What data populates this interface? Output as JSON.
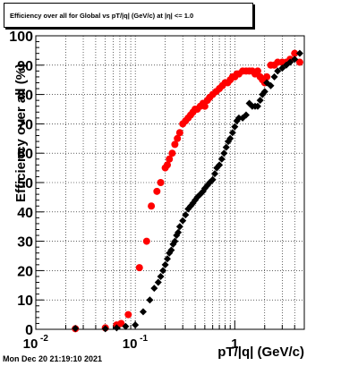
{
  "title": "Efficiency over all for Global vs pT/|q| (GeV/c) at |η| <= 1.0",
  "footer_timestamp": "Mon Dec 20 21:19:10 2021",
  "chart_data": {
    "type": "scatter",
    "xlabel": "pT/|q| (GeV/c)",
    "ylabel": "Efficiency over all (%)",
    "xscale": "log",
    "xlim": [
      0.01,
      5
    ],
    "ylim": [
      0,
      100
    ],
    "grid": true,
    "y_ticks": [
      "0",
      "10",
      "20",
      "30",
      "40",
      "50",
      "60",
      "70",
      "80",
      "90",
      "100"
    ],
    "x_ticks": [
      {
        "value": 0.01,
        "label": "10",
        "sup": "-2"
      },
      {
        "value": 0.1,
        "label": "10",
        "sup": "-1"
      },
      {
        "value": 1,
        "label": "1",
        "sup": ""
      }
    ],
    "colors": {
      "series_red": "#ff0000",
      "series_black": "#000000"
    },
    "series": [
      {
        "color": "#ff0000",
        "x": [
          0.025,
          0.05,
          0.065,
          0.072,
          0.085,
          0.11,
          0.13,
          0.145,
          0.165,
          0.18,
          0.2,
          0.21,
          0.22,
          0.235,
          0.25,
          0.265,
          0.28,
          0.3,
          0.32,
          0.34,
          0.36,
          0.38,
          0.4,
          0.42,
          0.45,
          0.48,
          0.5,
          0.53,
          0.56,
          0.6,
          0.65,
          0.7,
          0.75,
          0.8,
          0.85,
          0.9,
          0.95,
          1.0,
          1.05,
          1.1,
          1.2,
          1.3,
          1.4,
          1.5,
          1.6,
          1.7,
          1.8,
          1.9,
          2.0,
          2.1,
          2.3,
          2.5,
          2.7,
          3.0,
          3.3,
          3.6,
          4.0,
          4.5
        ],
        "y": [
          0.2,
          0.5,
          1.5,
          2,
          5,
          21,
          30,
          42,
          47,
          50,
          55,
          56,
          58,
          60,
          63,
          65,
          67,
          70,
          71,
          72,
          73,
          74,
          75,
          75,
          76,
          77,
          76,
          78,
          79,
          80,
          81,
          82,
          83,
          84,
          84,
          85,
          86,
          86,
          87,
          87,
          88,
          88,
          88,
          88,
          87,
          88,
          86,
          85,
          84,
          86,
          90,
          90,
          91,
          91,
          91,
          92,
          94,
          91
        ]
      },
      {
        "color": "#000000",
        "x": [
          0.025,
          0.05,
          0.065,
          0.08,
          0.1,
          0.12,
          0.14,
          0.155,
          0.17,
          0.18,
          0.19,
          0.2,
          0.21,
          0.22,
          0.23,
          0.24,
          0.25,
          0.26,
          0.27,
          0.28,
          0.3,
          0.32,
          0.34,
          0.36,
          0.38,
          0.4,
          0.42,
          0.45,
          0.48,
          0.5,
          0.53,
          0.56,
          0.6,
          0.63,
          0.66,
          0.7,
          0.74,
          0.78,
          0.82,
          0.86,
          0.9,
          0.95,
          1.0,
          1.05,
          1.1,
          1.2,
          1.3,
          1.4,
          1.5,
          1.6,
          1.7,
          1.8,
          1.9,
          2.0,
          2.1,
          2.3,
          2.5,
          2.7,
          3.0,
          3.3,
          3.6,
          4.0,
          4.5
        ],
        "y": [
          0.3,
          0.2,
          0.5,
          1,
          1.5,
          6,
          10,
          14,
          16,
          18,
          20,
          22,
          24,
          26,
          27,
          29,
          30,
          32,
          33,
          35,
          37,
          39,
          41,
          42,
          43,
          44,
          45,
          46,
          47,
          48,
          49,
          50,
          51,
          53,
          55,
          56,
          58,
          60,
          62,
          64,
          65,
          67,
          69,
          71,
          72,
          72,
          73,
          77,
          76,
          76,
          76,
          78,
          80,
          81,
          84,
          83,
          86,
          88,
          89,
          90,
          91,
          92,
          94
        ]
      }
    ]
  }
}
